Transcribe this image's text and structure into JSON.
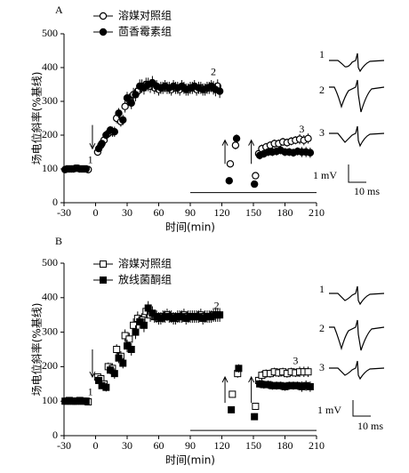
{
  "chart_data": [
    {
      "type": "scatter",
      "label": "A",
      "xlabel": "时间(min)",
      "ylabel": "场电位斜率(%基线)",
      "xlim": [
        -30,
        210
      ],
      "xticks": [
        -30,
        0,
        30,
        60,
        90,
        120,
        150,
        180,
        210
      ],
      "ylim": [
        0,
        500
      ],
      "yticks": [
        0,
        100,
        200,
        300,
        400,
        500
      ],
      "series": [
        {
          "name": "溶媒对照组",
          "marker": "circle",
          "filled": false,
          "color": "#000000",
          "x": [
            -27,
            -23,
            -19,
            -15,
            -11,
            -7,
            2,
            5,
            8,
            12,
            16,
            20,
            24,
            28,
            32,
            36,
            40,
            44,
            48,
            52,
            56,
            60,
            64,
            68,
            72,
            76,
            80,
            84,
            88,
            92,
            96,
            100,
            104,
            108,
            112,
            116,
            128,
            133,
            152,
            155,
            158,
            162,
            166,
            170,
            174,
            178,
            182,
            186,
            190,
            194,
            198,
            202
          ],
          "values": [
            100,
            100,
            102,
            100,
            100,
            98,
            150,
            170,
            185,
            205,
            210,
            250,
            240,
            285,
            305,
            320,
            330,
            345,
            350,
            345,
            340,
            335,
            340,
            340,
            335,
            340,
            335,
            340,
            335,
            340,
            335,
            340,
            335,
            340,
            340,
            345,
            115,
            170,
            80,
            145,
            160,
            165,
            170,
            175,
            175,
            180,
            178,
            182,
            185,
            188,
            185,
            190
          ],
          "errors": [
            5,
            5,
            5,
            5,
            5,
            5,
            10,
            10,
            12,
            12,
            15,
            15,
            15,
            18,
            18,
            20,
            20,
            20,
            20,
            20,
            18,
            18,
            18,
            18,
            18,
            18,
            18,
            18,
            18,
            18,
            18,
            18,
            18,
            18,
            20,
            20,
            10,
            12,
            10,
            12,
            12,
            12,
            12,
            12,
            12,
            12,
            12,
            12,
            12,
            15,
            15,
            15
          ]
        },
        {
          "name": "茴香霉素组",
          "marker": "circle",
          "filled": true,
          "color": "#000000",
          "x": [
            -29,
            -25,
            -21,
            -17,
            -13,
            -9,
            3,
            6,
            10,
            14,
            18,
            22,
            26,
            30,
            34,
            38,
            42,
            46,
            50,
            54,
            58,
            62,
            66,
            70,
            74,
            78,
            82,
            86,
            90,
            94,
            98,
            102,
            106,
            110,
            114,
            118,
            127,
            134,
            151,
            156,
            160,
            164,
            168,
            172,
            176,
            180,
            184,
            188,
            192,
            196,
            200,
            204
          ],
          "values": [
            98,
            100,
            100,
            102,
            100,
            100,
            160,
            175,
            200,
            215,
            210,
            265,
            245,
            310,
            295,
            320,
            345,
            340,
            350,
            355,
            345,
            340,
            345,
            340,
            345,
            340,
            345,
            335,
            340,
            345,
            340,
            335,
            340,
            345,
            335,
            330,
            65,
            190,
            55,
            140,
            145,
            150,
            150,
            152,
            155,
            150,
            150,
            148,
            152,
            150,
            150,
            148
          ],
          "errors": [
            5,
            5,
            5,
            5,
            5,
            5,
            10,
            10,
            12,
            12,
            15,
            15,
            15,
            18,
            18,
            20,
            20,
            20,
            20,
            20,
            18,
            18,
            18,
            18,
            18,
            18,
            18,
            18,
            18,
            18,
            18,
            18,
            18,
            18,
            20,
            20,
            10,
            12,
            10,
            12,
            12,
            12,
            12,
            12,
            12,
            12,
            12,
            12,
            12,
            15,
            15,
            15
          ]
        }
      ],
      "annotations": [
        {
          "text": "1",
          "x": -5,
          "y": 125
        },
        {
          "text": "2",
          "x": 112,
          "y": 385
        },
        {
          "text": "3",
          "x": 196,
          "y": 215
        }
      ],
      "arrows": [
        {
          "x": -3,
          "from": 230,
          "to": 160
        },
        {
          "x": 123,
          "from": 115,
          "to": 185
        },
        {
          "x": 148,
          "from": 115,
          "to": 185
        }
      ],
      "period": {
        "x": [
          90,
          210
        ],
        "y": 30
      },
      "traces": [
        "1",
        "2",
        "3"
      ],
      "scale_bar": [
        "1 mV",
        "10 ms"
      ]
    },
    {
      "type": "scatter",
      "label": "B",
      "xlabel": "时间(min)",
      "ylabel": "场电位斜率(%基线)",
      "xlim": [
        -30,
        210
      ],
      "xticks": [
        -30,
        0,
        30,
        60,
        90,
        120,
        150,
        180,
        210
      ],
      "ylim": [
        0,
        500
      ],
      "yticks": [
        0,
        100,
        200,
        300,
        400,
        500
      ],
      "series": [
        {
          "name": "溶媒对照组",
          "marker": "square",
          "filled": false,
          "color": "#000000",
          "x": [
            -27,
            -23,
            -19,
            -15,
            -11,
            -7,
            2,
            5,
            8,
            12,
            16,
            20,
            24,
            28,
            32,
            36,
            40,
            44,
            48,
            52,
            56,
            60,
            64,
            68,
            72,
            76,
            80,
            84,
            88,
            92,
            96,
            100,
            104,
            108,
            112,
            116,
            130,
            135,
            152,
            155,
            158,
            162,
            166,
            170,
            174,
            178,
            182,
            186,
            190,
            194,
            198,
            202
          ],
          "values": [
            100,
            100,
            100,
            102,
            100,
            98,
            170,
            165,
            150,
            200,
            195,
            250,
            230,
            290,
            280,
            320,
            340,
            335,
            360,
            350,
            345,
            340,
            345,
            350,
            345,
            340,
            345,
            350,
            345,
            345,
            345,
            350,
            345,
            345,
            350,
            350,
            120,
            180,
            85,
            160,
            175,
            180,
            180,
            185,
            182,
            185,
            180,
            185,
            182,
            185,
            185,
            185
          ],
          "errors": [
            5,
            5,
            5,
            5,
            5,
            5,
            10,
            10,
            12,
            12,
            15,
            15,
            15,
            18,
            18,
            20,
            20,
            20,
            20,
            20,
            18,
            18,
            18,
            18,
            18,
            18,
            18,
            18,
            18,
            18,
            18,
            18,
            18,
            18,
            20,
            20,
            10,
            12,
            10,
            12,
            12,
            12,
            12,
            12,
            12,
            12,
            12,
            12,
            12,
            15,
            15,
            15
          ]
        },
        {
          "name": "放线菌酮组",
          "marker": "square",
          "filled": true,
          "color": "#000000",
          "x": [
            -29,
            -25,
            -21,
            -17,
            -13,
            -9,
            3,
            6,
            10,
            14,
            18,
            22,
            26,
            30,
            34,
            38,
            42,
            46,
            50,
            54,
            58,
            62,
            66,
            70,
            74,
            78,
            82,
            86,
            90,
            94,
            98,
            102,
            106,
            110,
            114,
            118,
            129,
            136,
            151,
            156,
            160,
            164,
            168,
            172,
            176,
            180,
            184,
            188,
            192,
            196,
            200,
            204
          ],
          "values": [
            100,
            102,
            100,
            100,
            100,
            100,
            160,
            145,
            140,
            190,
            180,
            225,
            210,
            260,
            250,
            300,
            330,
            320,
            370,
            355,
            345,
            340,
            345,
            345,
            340,
            345,
            345,
            340,
            345,
            345,
            345,
            340,
            345,
            345,
            350,
            350,
            75,
            195,
            55,
            150,
            148,
            148,
            145,
            145,
            145,
            142,
            145,
            145,
            145,
            142,
            145,
            142
          ],
          "errors": [
            5,
            5,
            5,
            5,
            5,
            5,
            10,
            10,
            12,
            12,
            15,
            15,
            15,
            18,
            18,
            20,
            20,
            20,
            20,
            20,
            18,
            18,
            18,
            18,
            18,
            18,
            18,
            18,
            18,
            18,
            18,
            18,
            18,
            18,
            20,
            20,
            10,
            12,
            10,
            12,
            12,
            12,
            12,
            12,
            12,
            12,
            12,
            12,
            12,
            15,
            15,
            15
          ]
        }
      ],
      "annotations": [
        {
          "text": "1",
          "x": -5,
          "y": 125
        },
        {
          "text": "2",
          "x": 115,
          "y": 375
        },
        {
          "text": "3",
          "x": 190,
          "y": 215
        }
      ],
      "arrows": [
        {
          "x": -3,
          "from": 250,
          "to": 170
        },
        {
          "x": 123,
          "from": 95,
          "to": 170
        },
        {
          "x": 148,
          "from": 95,
          "to": 170
        }
      ],
      "period": {
        "x": [
          90,
          210
        ],
        "y": 15
      },
      "traces": [
        "1",
        "2",
        "3"
      ],
      "scale_bar": [
        "1 mV",
        "10 ms"
      ]
    }
  ]
}
